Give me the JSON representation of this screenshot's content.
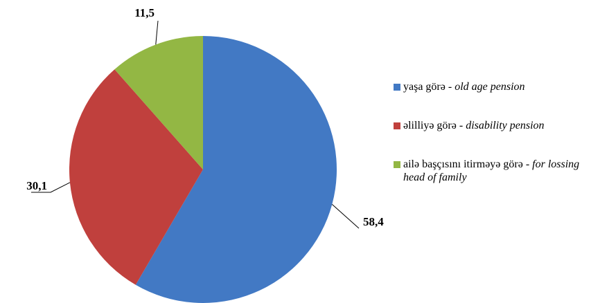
{
  "chart_data": {
    "type": "pie",
    "categories": [
      {
        "az": "yaşa görə -",
        "en": "old age pension"
      },
      {
        "az": "əlilliyə görə -",
        "en": "disability pension"
      },
      {
        "az": "ailə başçısını itirməyə görə -",
        "en": "for lossing head of family"
      }
    ],
    "values": [
      58.4,
      30.1,
      11.5
    ],
    "value_labels": [
      "58,4",
      "30,1",
      "11,5"
    ],
    "colors": [
      "#4279c4",
      "#c0403d",
      "#93b744"
    ],
    "legend": "right"
  }
}
